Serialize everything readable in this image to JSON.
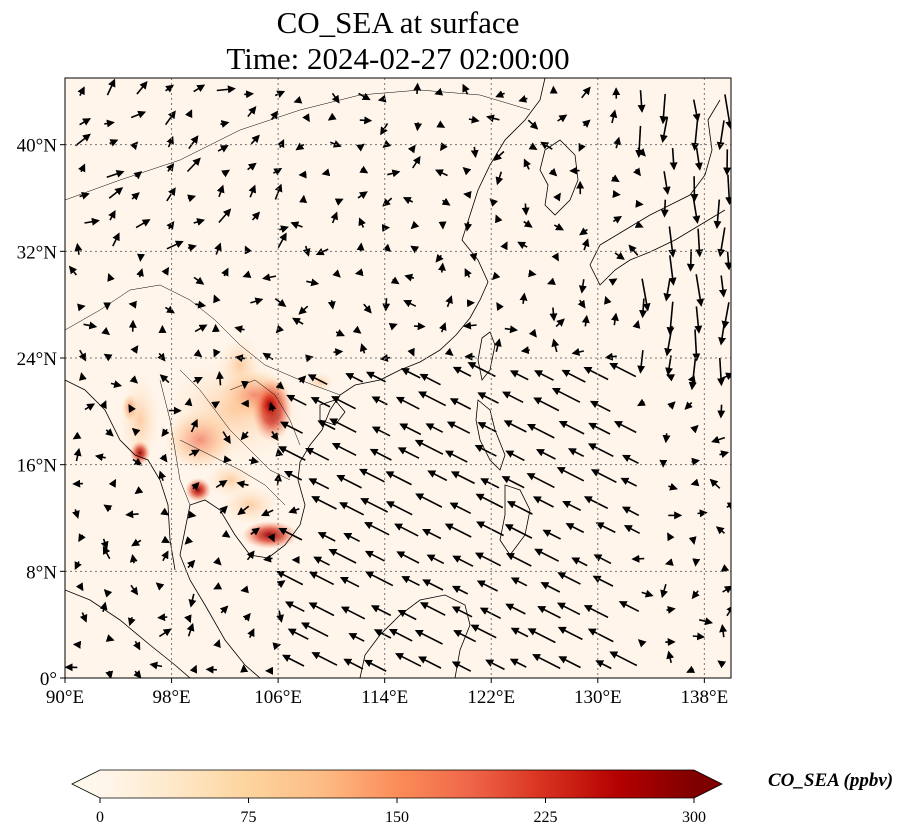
{
  "title": {
    "line1": "CO_SEA at surface",
    "line2": "Time: 2024-02-27 02:00:00"
  },
  "map": {
    "lon_range": [
      90,
      140
    ],
    "lat_range": [
      0,
      45
    ],
    "x_ticks": [
      "90°E",
      "98°E",
      "106°E",
      "114°E",
      "122°E",
      "130°E",
      "138°E"
    ],
    "x_tick_values": [
      90,
      98,
      106,
      114,
      122,
      130,
      138
    ],
    "y_ticks": [
      "0°",
      "8°N",
      "16°N",
      "24°N",
      "32°N",
      "40°N"
    ],
    "y_tick_values": [
      0,
      8,
      16,
      24,
      32,
      40
    ],
    "gridlines": true,
    "gridline_style": "dotted",
    "background_color": "#fff5eb"
  },
  "colorbar": {
    "label": "CO_SEA (ppbv)",
    "ticks": [
      "0",
      "75",
      "150",
      "225",
      "300"
    ],
    "tick_values": [
      0,
      75,
      150,
      225,
      300
    ],
    "range": [
      0,
      300
    ],
    "colormap": "OrRd",
    "colors": [
      "#fff7ec",
      "#fee8c8",
      "#fdd49e",
      "#fdbb84",
      "#fc8d59",
      "#ef6548",
      "#d7301f",
      "#b30000",
      "#7f0000"
    ],
    "extend": "both"
  }
}
